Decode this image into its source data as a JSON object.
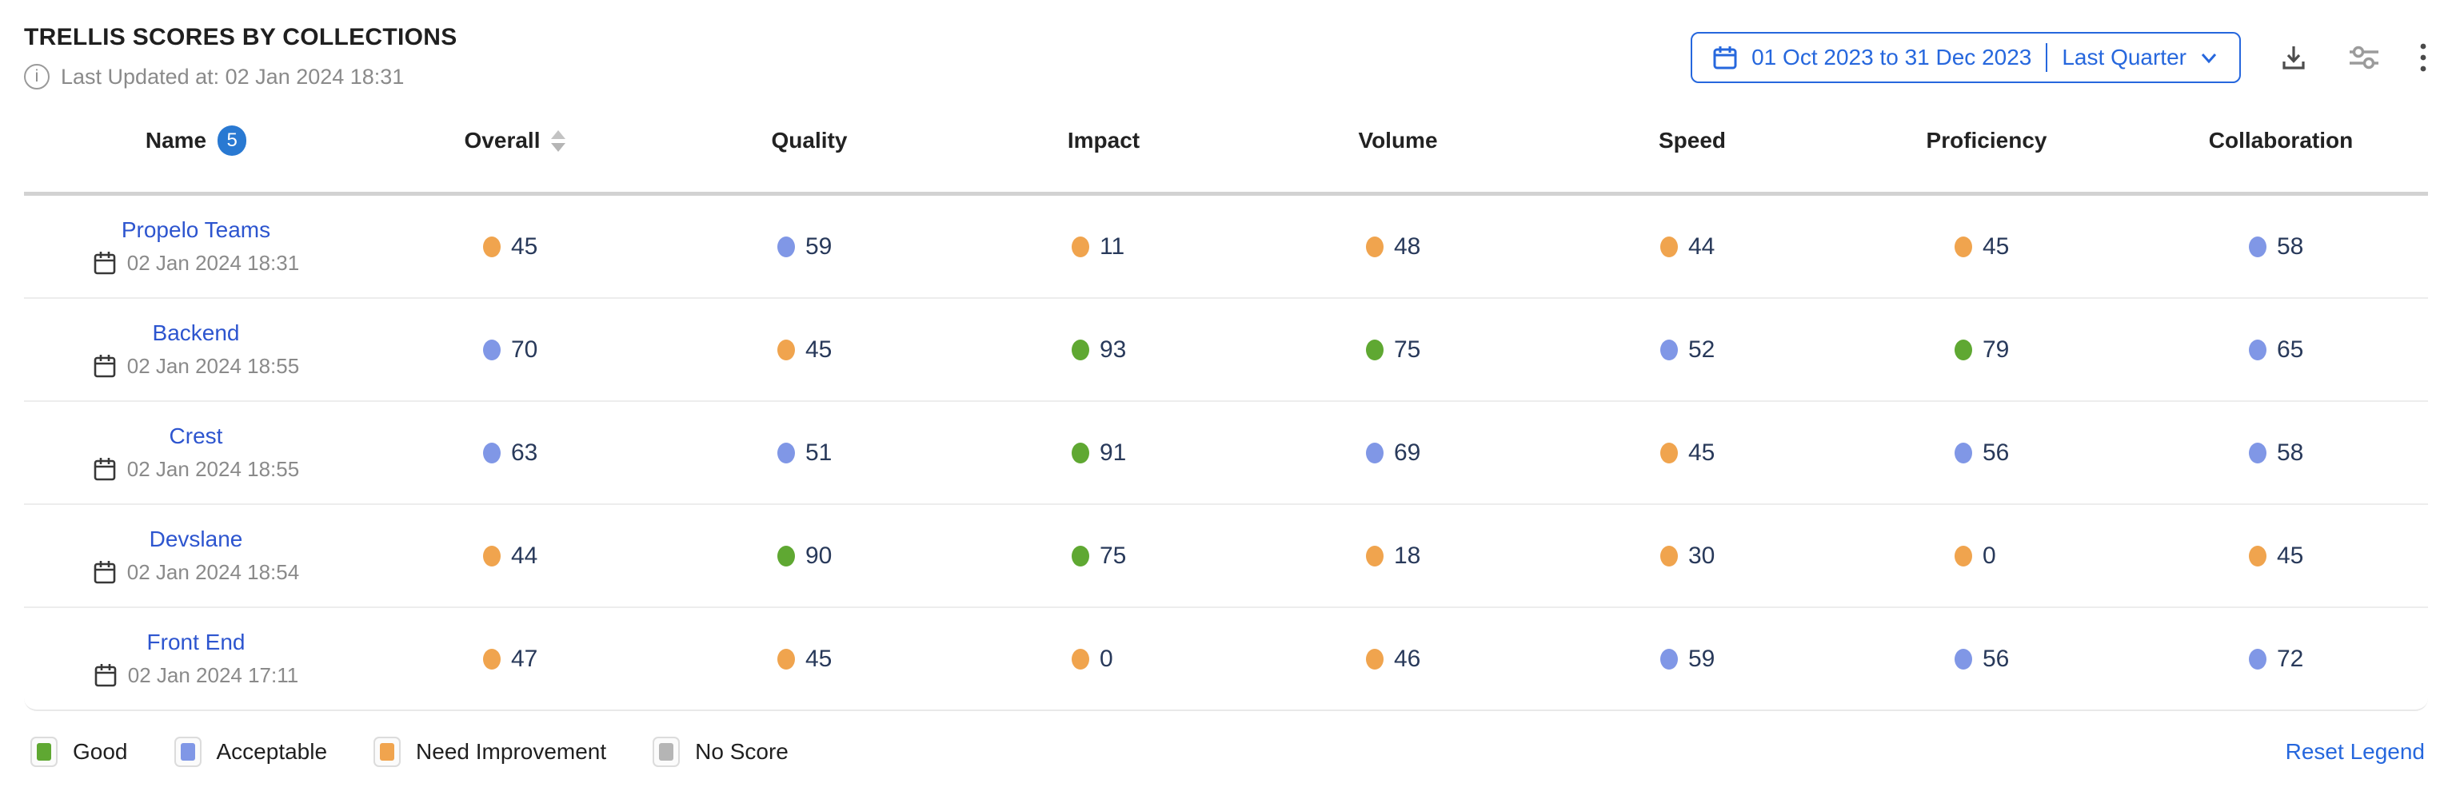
{
  "widget": {
    "title": "TRELLIS SCORES BY COLLECTIONS",
    "last_updated": "Last Updated at: 02 Jan 2024 18:31"
  },
  "toolbar": {
    "date_range": "01 Oct 2023 to 31 Dec 2023",
    "date_preset": "Last Quarter"
  },
  "table": {
    "columns": [
      {
        "label": "Name",
        "badge": "5"
      },
      {
        "label": "Overall",
        "sortable": true
      },
      {
        "label": "Quality"
      },
      {
        "label": "Impact"
      },
      {
        "label": "Volume"
      },
      {
        "label": "Speed"
      },
      {
        "label": "Proficiency"
      },
      {
        "label": "Collaboration"
      }
    ],
    "rows": [
      {
        "name": "Propelo Teams",
        "date": "02 Jan 2024 18:31",
        "scores": [
          {
            "value": "45",
            "status": "need_improvement"
          },
          {
            "value": "59",
            "status": "acceptable"
          },
          {
            "value": "11",
            "status": "need_improvement"
          },
          {
            "value": "48",
            "status": "need_improvement"
          },
          {
            "value": "44",
            "status": "need_improvement"
          },
          {
            "value": "45",
            "status": "need_improvement"
          },
          {
            "value": "58",
            "status": "acceptable"
          }
        ]
      },
      {
        "name": "Backend",
        "date": "02 Jan 2024 18:55",
        "scores": [
          {
            "value": "70",
            "status": "acceptable"
          },
          {
            "value": "45",
            "status": "need_improvement"
          },
          {
            "value": "93",
            "status": "good"
          },
          {
            "value": "75",
            "status": "good"
          },
          {
            "value": "52",
            "status": "acceptable"
          },
          {
            "value": "79",
            "status": "good"
          },
          {
            "value": "65",
            "status": "acceptable"
          }
        ]
      },
      {
        "name": "Crest",
        "date": "02 Jan 2024 18:55",
        "scores": [
          {
            "value": "63",
            "status": "acceptable"
          },
          {
            "value": "51",
            "status": "acceptable"
          },
          {
            "value": "91",
            "status": "good"
          },
          {
            "value": "69",
            "status": "acceptable"
          },
          {
            "value": "45",
            "status": "need_improvement"
          },
          {
            "value": "56",
            "status": "acceptable"
          },
          {
            "value": "58",
            "status": "acceptable"
          }
        ]
      },
      {
        "name": "Devslane",
        "date": "02 Jan 2024 18:54",
        "scores": [
          {
            "value": "44",
            "status": "need_improvement"
          },
          {
            "value": "90",
            "status": "good"
          },
          {
            "value": "75",
            "status": "good"
          },
          {
            "value": "18",
            "status": "need_improvement"
          },
          {
            "value": "30",
            "status": "need_improvement"
          },
          {
            "value": "0",
            "status": "need_improvement"
          },
          {
            "value": "45",
            "status": "need_improvement"
          }
        ]
      },
      {
        "name": "Front End",
        "date": "02 Jan 2024 17:11",
        "scores": [
          {
            "value": "47",
            "status": "need_improvement"
          },
          {
            "value": "45",
            "status": "need_improvement"
          },
          {
            "value": "0",
            "status": "need_improvement"
          },
          {
            "value": "46",
            "status": "need_improvement"
          },
          {
            "value": "59",
            "status": "acceptable"
          },
          {
            "value": "56",
            "status": "acceptable"
          },
          {
            "value": "72",
            "status": "acceptable"
          }
        ]
      }
    ]
  },
  "legend": {
    "items": [
      {
        "label": "Good",
        "status": "good"
      },
      {
        "label": "Acceptable",
        "status": "acceptable"
      },
      {
        "label": "Need Improvement",
        "status": "need_improvement"
      },
      {
        "label": "No Score",
        "status": "no_score"
      }
    ],
    "reset_label": "Reset Legend"
  },
  "colors": {
    "good": "#5fa832",
    "acceptable": "#8097e6",
    "need_improvement": "#f0a44e",
    "no_score": "#b5b5b5",
    "accent_blue": "#2667dd",
    "link_blue": "#2d55cf",
    "badge_blue": "#2979d2"
  }
}
